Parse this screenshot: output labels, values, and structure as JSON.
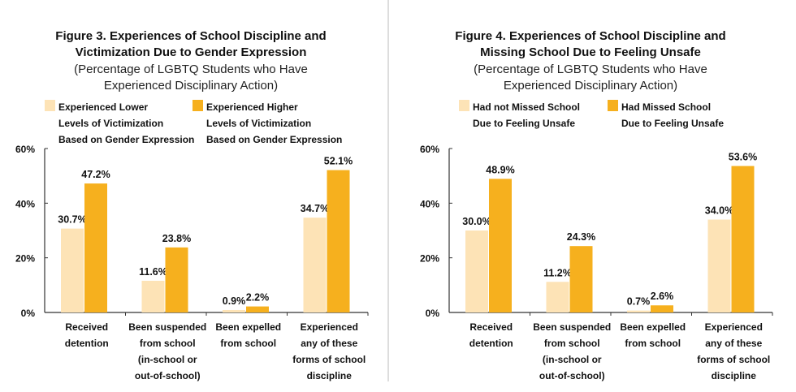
{
  "colors": {
    "lower": "#fde3b6",
    "higher": "#f6b01e",
    "axis": "#333333",
    "divider": "#bbbbbb"
  },
  "chart_data": [
    {
      "type": "bar",
      "title": "Figure 3. Experiences of School Discipline and Victimization Due to Gender Expression",
      "title_lines": [
        "Figure 3. Experiences of School Discipline and",
        "Victimization Due to Gender Expression"
      ],
      "subtitle_lines": [
        "(Percentage of LGBTQ Students who Have",
        "Experienced Disciplinary Action)"
      ],
      "ylim": [
        0,
        60
      ],
      "yticks": [
        "0%",
        "20%",
        "40%",
        "60%"
      ],
      "legend_placement": "top",
      "categories": [
        [
          "Received",
          "detention"
        ],
        [
          "Been suspended",
          "from school",
          "(in-school or",
          "out-of-school)"
        ],
        [
          "Been expelled",
          "from school"
        ],
        [
          "Experienced",
          "any of these",
          "forms of school",
          "discipline"
        ]
      ],
      "series": [
        {
          "name_lines": [
            "Experienced Lower",
            "Levels of Victimization",
            "Based on Gender Expression"
          ],
          "values": [
            30.7,
            11.6,
            0.9,
            34.7
          ],
          "labels": [
            "30.7%",
            "11.6%",
            "0.9%",
            "34.7%"
          ]
        },
        {
          "name_lines": [
            "Experienced Higher",
            "Levels of Victimization",
            "Based on Gender Expression"
          ],
          "values": [
            47.2,
            23.8,
            2.2,
            52.1
          ],
          "labels": [
            "47.2%",
            "23.8%",
            "2.2%",
            "52.1%"
          ]
        }
      ]
    },
    {
      "type": "bar",
      "title": "Figure 4. Experiences of School Discipline and Missing School Due to Feeling Unsafe",
      "title_lines": [
        "Figure 4. Experiences of School Discipline and",
        "Missing School Due to Feeling Unsafe"
      ],
      "subtitle_lines": [
        "(Percentage of LGBTQ Students who Have",
        "Experienced Disciplinary Action)"
      ],
      "ylim": [
        0,
        60
      ],
      "yticks": [
        "0%",
        "20%",
        "40%",
        "60%"
      ],
      "legend_placement": "top",
      "categories": [
        [
          "Received",
          "detention"
        ],
        [
          "Been suspended",
          "from school",
          "(in-school or",
          "out-of-school)"
        ],
        [
          "Been expelled",
          "from school"
        ],
        [
          "Experienced",
          "any of these",
          "forms of school",
          "discipline"
        ]
      ],
      "series": [
        {
          "name_lines": [
            "Had not Missed School",
            "Due to Feeling Unsafe"
          ],
          "values": [
            30.0,
            11.2,
            0.7,
            34.0
          ],
          "labels": [
            "30.0%",
            "11.2%",
            "0.7%",
            "34.0%"
          ]
        },
        {
          "name_lines": [
            "Had Missed School",
            "Due to Feeling Unsafe"
          ],
          "values": [
            48.9,
            24.3,
            2.6,
            53.6
          ],
          "labels": [
            "48.9%",
            "24.3%",
            "2.6%",
            "53.6%"
          ]
        }
      ]
    }
  ]
}
